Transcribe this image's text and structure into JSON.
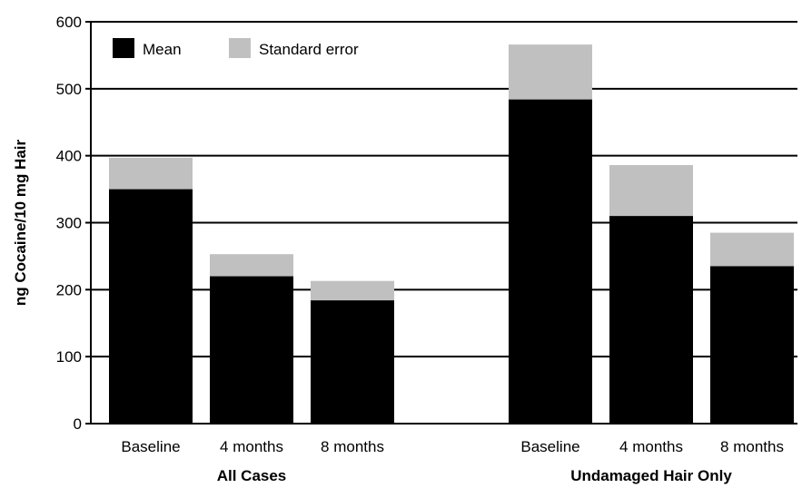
{
  "chart_data": {
    "type": "bar",
    "ylabel": "ng Cocaine/10 mg Hair",
    "ylim": [
      0,
      600
    ],
    "yticks": [
      0,
      100,
      200,
      300,
      400,
      500,
      600
    ],
    "grid": true,
    "legend": {
      "placement": "top-left",
      "entries": [
        {
          "name": "Mean",
          "color": "#000000"
        },
        {
          "name": "Standard error",
          "color": "#c0c0c0"
        }
      ]
    },
    "groups": [
      {
        "label": "All Cases",
        "bars": [
          {
            "category": "Baseline",
            "mean": 350,
            "se": 47
          },
          {
            "category": "4 months",
            "mean": 220,
            "se": 33
          },
          {
            "category": "8 months",
            "mean": 184,
            "se": 29
          }
        ]
      },
      {
        "label": "Undamaged Hair Only",
        "bars": [
          {
            "category": "Baseline",
            "mean": 484,
            "se": 82
          },
          {
            "category": "4 months",
            "mean": 310,
            "se": 76
          },
          {
            "category": "8 months",
            "mean": 235,
            "se": 50
          }
        ]
      }
    ]
  }
}
